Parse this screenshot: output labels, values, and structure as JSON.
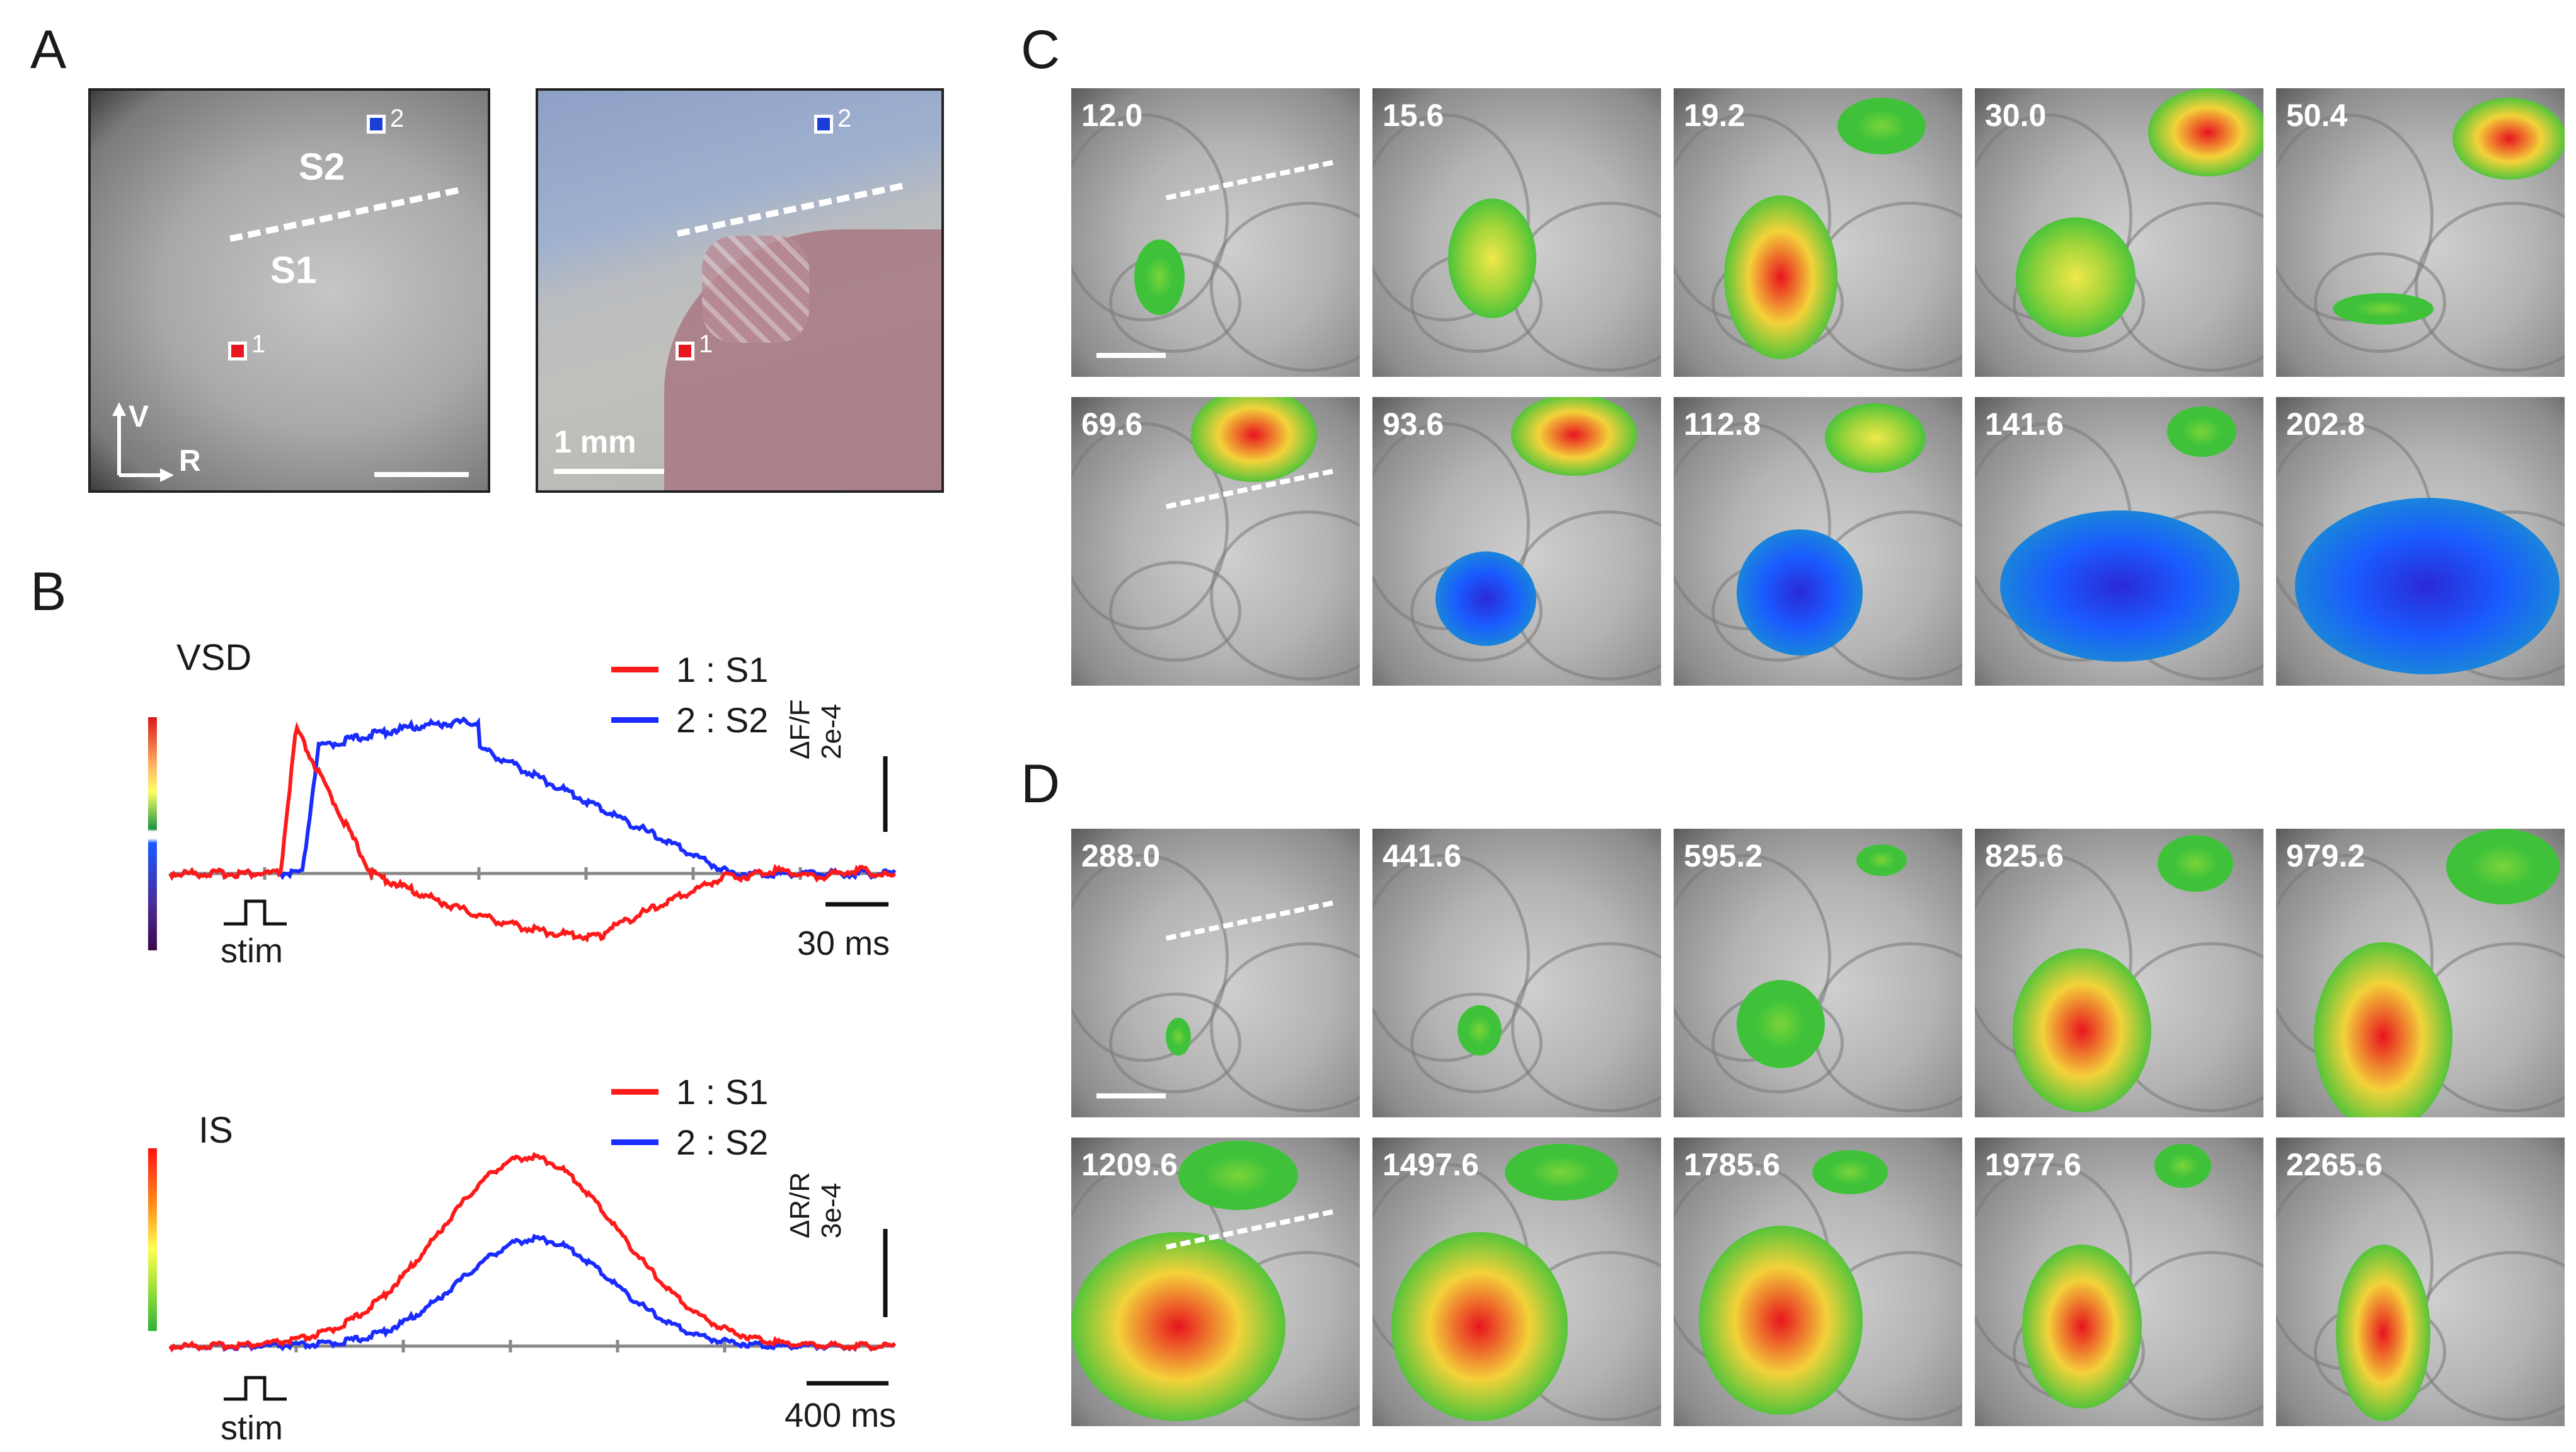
{
  "panel_labels": {
    "a": "A",
    "b": "B",
    "c": "C",
    "d": "D"
  },
  "panel_a": {
    "region_s2": "S2",
    "region_s1": "S1",
    "roi_1": "1",
    "roi_2": "2",
    "axis_v": "V",
    "axis_r": "R",
    "scale_text": "1 mm",
    "roi_colors": {
      "roi1": "#e8141e",
      "roi2": "#1a3fd6"
    }
  },
  "panel_b": {
    "vsd": {
      "title": "VSD",
      "legend": [
        {
          "label": "1 : S1",
          "color": "#ff1a1a"
        },
        {
          "label": "2 : S2",
          "color": "#1a2bff"
        }
      ],
      "ylabel": "ΔF/F",
      "yscale": "2e-4",
      "stim": "stim",
      "time_scale": "30 ms"
    },
    "is": {
      "title": "IS",
      "legend": [
        {
          "label": "1 : S1",
          "color": "#ff1a1a"
        },
        {
          "label": "2 : S2",
          "color": "#1a2bff"
        }
      ],
      "ylabel": "ΔR/R",
      "yscale": "3e-4",
      "stim": "stim",
      "time_scale": "400 ms"
    }
  },
  "panel_c": {
    "times": [
      "12.0",
      "15.6",
      "19.2",
      "30.0",
      "50.4",
      "69.6",
      "93.6",
      "112.8",
      "141.6",
      "202.8"
    ]
  },
  "panel_d": {
    "times": [
      "288.0",
      "441.6",
      "595.2",
      "825.6",
      "979.2",
      "1209.6",
      "1497.6",
      "1785.6",
      "1977.6",
      "2265.6"
    ]
  }
}
